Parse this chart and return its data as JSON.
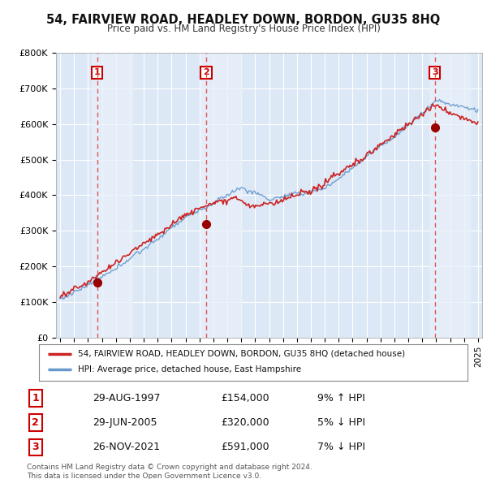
{
  "title": "54, FAIRVIEW ROAD, HEADLEY DOWN, BORDON, GU35 8HQ",
  "subtitle": "Price paid vs. HM Land Registry's House Price Index (HPI)",
  "bg_color": "#ffffff",
  "plot_bg_color": "#dce8f5",
  "grid_color": "#ffffff",
  "red_line_color": "#cc2222",
  "blue_line_color": "#6699cc",
  "sale_marker_color": "#990000",
  "sale_dashed_color": "#dd4444",
  "purchases": [
    {
      "date_num": 1997.66,
      "price": 154000,
      "label": "1"
    },
    {
      "date_num": 2005.49,
      "price": 320000,
      "label": "2"
    },
    {
      "date_num": 2021.9,
      "price": 591000,
      "label": "3"
    }
  ],
  "legend_entries": [
    {
      "color": "#cc2222",
      "text": "54, FAIRVIEW ROAD, HEADLEY DOWN, BORDON, GU35 8HQ (detached house)"
    },
    {
      "color": "#6699cc",
      "text": "HPI: Average price, detached house, East Hampshire"
    }
  ],
  "table_rows": [
    {
      "num": "1",
      "date": "29-AUG-1997",
      "price": "£154,000",
      "hpi": "9% ↑ HPI"
    },
    {
      "num": "2",
      "date": "29-JUN-2005",
      "price": "£320,000",
      "hpi": "5% ↓ HPI"
    },
    {
      "num": "3",
      "date": "26-NOV-2021",
      "price": "£591,000",
      "hpi": "7% ↓ HPI"
    }
  ],
  "footer": "Contains HM Land Registry data © Crown copyright and database right 2024.\nThis data is licensed under the Open Government Licence v3.0.",
  "ylim": [
    0,
    800000
  ],
  "yticks": [
    0,
    100000,
    200000,
    300000,
    400000,
    500000,
    600000,
    700000,
    800000
  ],
  "ytick_labels": [
    "£0",
    "£100K",
    "£200K",
    "£300K",
    "£400K",
    "£500K",
    "£600K",
    "£700K",
    "£800K"
  ],
  "xlim_start": 1994.7,
  "xlim_end": 2025.3,
  "highlight_color": "#e8f0fa"
}
